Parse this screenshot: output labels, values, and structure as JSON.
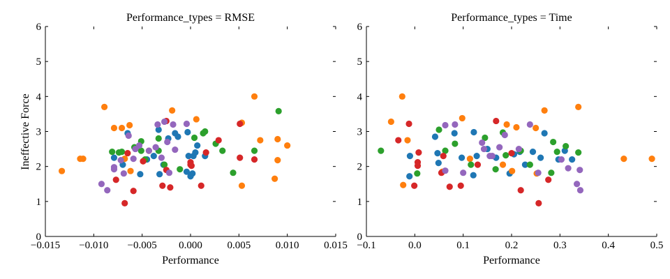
{
  "figure": {
    "ylabel": "Ineffective Force"
  },
  "colors": {
    "blue": "#1f77b4",
    "orange": "#ff7f0e",
    "green": "#2ca02c",
    "red": "#d62728",
    "purple": "#9467bd"
  },
  "chart_data": [
    {
      "type": "scatter",
      "title": "Performance_types = RMSE",
      "xlabel": "Performance",
      "ylabel": "Ineffective Force",
      "xlim": [
        -0.015,
        0.015
      ],
      "ylim": [
        0,
        6
      ],
      "xticks": [
        "−0.015",
        "−0.010",
        "−0.005",
        "0.000",
        "0.005",
        "0.010",
        "0.015"
      ],
      "xtick_values": [
        -0.015,
        -0.01,
        -0.005,
        0,
        0.005,
        0.01,
        0.015
      ],
      "yticks": [
        "0",
        "1",
        "2",
        "3",
        "4",
        "5",
        "6"
      ],
      "ytick_values": [
        0,
        1,
        2,
        3,
        4,
        5,
        6
      ],
      "grid": false,
      "series": [
        {
          "color": "blue",
          "points": [
            [
              -0.0079,
              2.25
            ],
            [
              -0.007,
              2.05
            ],
            [
              -0.0065,
              2.95
            ],
            [
              -0.0052,
              1.78
            ],
            [
              -0.0045,
              2.2
            ],
            [
              -0.0038,
              2.3
            ],
            [
              -0.0033,
              3.05
            ],
            [
              -0.0032,
              1.78
            ],
            [
              -0.0028,
              2.05
            ],
            [
              -0.0023,
              2.8
            ],
            [
              -0.0016,
              2.95
            ],
            [
              -0.0013,
              2.85
            ],
            [
              -0.0004,
              1.85
            ],
            [
              -0.0003,
              2.98
            ],
            [
              -0.0002,
              2.3
            ],
            [
              0.0,
              1.72
            ],
            [
              0.0002,
              1.8
            ],
            [
              0.0003,
              2.3
            ],
            [
              0.0005,
              2.4
            ],
            [
              0.0007,
              2.6
            ],
            [
              0.0015,
              2.3
            ]
          ]
        },
        {
          "color": "orange",
          "points": [
            [
              -0.0133,
              1.87
            ],
            [
              -0.0114,
              2.22
            ],
            [
              -0.0111,
              2.22
            ],
            [
              -0.0089,
              3.7
            ],
            [
              -0.0079,
              3.1
            ],
            [
              -0.0071,
              3.1
            ],
            [
              -0.0068,
              2.22
            ],
            [
              -0.0063,
              3.18
            ],
            [
              -0.0062,
              1.87
            ],
            [
              -0.0049,
              2.15
            ],
            [
              -0.0043,
              2.45
            ],
            [
              -0.0019,
              3.6
            ],
            [
              0.0006,
              3.35
            ],
            [
              0.0053,
              3.25
            ],
            [
              0.0053,
              1.45
            ],
            [
              0.0066,
              4.0
            ],
            [
              0.0072,
              2.75
            ],
            [
              0.0087,
              1.65
            ],
            [
              0.009,
              2.78
            ],
            [
              0.009,
              2.18
            ],
            [
              0.01,
              2.6
            ]
          ]
        },
        {
          "color": "green",
          "points": [
            [
              -0.0081,
              2.42
            ],
            [
              -0.0074,
              2.4
            ],
            [
              -0.0071,
              2.42
            ],
            [
              -0.0058,
              2.55
            ],
            [
              -0.0051,
              2.72
            ],
            [
              -0.0051,
              2.45
            ],
            [
              -0.0047,
              2.2
            ],
            [
              -0.0033,
              2.45
            ],
            [
              -0.0033,
              2.8
            ],
            [
              -0.0027,
              2.05
            ],
            [
              -0.0011,
              1.92
            ],
            [
              0.0004,
              2.82
            ],
            [
              0.0013,
              2.95
            ],
            [
              0.0015,
              3.0
            ],
            [
              0.0026,
              2.65
            ],
            [
              0.0033,
              2.45
            ],
            [
              0.0044,
              1.82
            ],
            [
              0.0066,
              2.45
            ],
            [
              0.0091,
              3.58
            ]
          ]
        },
        {
          "color": "red",
          "points": [
            [
              -0.0077,
              1.62
            ],
            [
              -0.0068,
              0.95
            ],
            [
              -0.0065,
              2.38
            ],
            [
              -0.0059,
              1.3
            ],
            [
              -0.0049,
              2.15
            ],
            [
              -0.0029,
              1.45
            ],
            [
              -0.0025,
              1.9
            ],
            [
              -0.0025,
              3.3
            ],
            [
              -0.0021,
              1.4
            ],
            [
              0.0,
              2.05
            ],
            [
              0.0,
              2.12
            ],
            [
              0.0001,
              2.02
            ],
            [
              0.0011,
              1.45
            ],
            [
              0.0016,
              2.4
            ],
            [
              0.0029,
              2.75
            ],
            [
              0.0051,
              2.25
            ],
            [
              0.0051,
              3.22
            ],
            [
              0.0066,
              2.2
            ]
          ]
        },
        {
          "color": "purple",
          "points": [
            [
              -0.0092,
              1.5
            ],
            [
              -0.0086,
              1.32
            ],
            [
              -0.0079,
              1.92
            ],
            [
              -0.0079,
              1.98
            ],
            [
              -0.0072,
              2.18
            ],
            [
              -0.0069,
              1.8
            ],
            [
              -0.0064,
              2.88
            ],
            [
              -0.0059,
              2.22
            ],
            [
              -0.0057,
              2.5
            ],
            [
              -0.0053,
              2.6
            ],
            [
              -0.0043,
              2.45
            ],
            [
              -0.0034,
              3.2
            ],
            [
              -0.0036,
              2.55
            ],
            [
              -0.003,
              2.25
            ],
            [
              -0.0027,
              3.28
            ],
            [
              -0.0024,
              2.7
            ],
            [
              -0.0022,
              1.82
            ],
            [
              -0.0018,
              3.2
            ],
            [
              -0.0016,
              2.48
            ],
            [
              -0.0004,
              3.22
            ]
          ]
        }
      ]
    },
    {
      "type": "scatter",
      "title": "Performance_types = Time",
      "xlabel": "Performance",
      "ylabel": "",
      "xlim": [
        -0.1,
        0.5
      ],
      "ylim": [
        0,
        6
      ],
      "xticks": [
        "−0.1",
        "0.0",
        "0.1",
        "0.2",
        "0.3",
        "0.4",
        "0.5"
      ],
      "xtick_values": [
        -0.1,
        0,
        0.1,
        0.2,
        0.3,
        0.4,
        0.5
      ],
      "yticks": [
        "0",
        "1",
        "2",
        "3",
        "4",
        "5",
        "6"
      ],
      "ytick_values": [
        0,
        1,
        2,
        3,
        4,
        5,
        6
      ],
      "grid": false,
      "series": [
        {
          "color": "blue",
          "points": [
            [
              -0.01,
              2.3
            ],
            [
              -0.011,
              1.72
            ],
            [
              0.042,
              2.85
            ],
            [
              0.047,
              2.38
            ],
            [
              0.049,
              2.1
            ],
            [
              0.082,
              2.95
            ],
            [
              0.097,
              2.25
            ],
            [
              0.122,
              2.98
            ],
            [
              0.121,
              1.75
            ],
            [
              0.128,
              2.3
            ],
            [
              0.15,
              2.5
            ],
            [
              0.168,
              2.25
            ],
            [
              0.196,
              1.8
            ],
            [
              0.205,
              2.35
            ],
            [
              0.217,
              2.42
            ],
            [
              0.228,
              2.05
            ],
            [
              0.244,
              2.42
            ],
            [
              0.26,
              2.25
            ],
            [
              0.268,
              2.95
            ],
            [
              0.297,
              2.2
            ],
            [
              0.31,
              2.45
            ],
            [
              0.325,
              2.2
            ]
          ]
        },
        {
          "color": "orange",
          "points": [
            [
              -0.049,
              3.28
            ],
            [
              -0.026,
              4.0
            ],
            [
              -0.024,
              1.47
            ],
            [
              -0.015,
              2.75
            ],
            [
              0.057,
              1.85
            ],
            [
              0.098,
              3.38
            ],
            [
              0.114,
              2.22
            ],
            [
              0.182,
              2.05
            ],
            [
              0.19,
              3.2
            ],
            [
              0.201,
              1.87
            ],
            [
              0.21,
              3.12
            ],
            [
              0.25,
              3.1
            ],
            [
              0.252,
              1.8
            ],
            [
              0.268,
              3.6
            ],
            [
              0.338,
              3.7
            ],
            [
              0.432,
              2.22
            ],
            [
              0.49,
              2.22
            ]
          ]
        },
        {
          "color": "green",
          "points": [
            [
              -0.07,
              2.45
            ],
            [
              0.005,
              1.8
            ],
            [
              0.05,
              3.05
            ],
            [
              0.063,
              2.45
            ],
            [
              0.083,
              2.65
            ],
            [
              0.116,
              2.05
            ],
            [
              0.145,
              2.82
            ],
            [
              0.167,
              1.92
            ],
            [
              0.182,
              2.97
            ],
            [
              0.188,
              2.32
            ],
            [
              0.219,
              2.45
            ],
            [
              0.238,
              2.05
            ],
            [
              0.286,
              2.7
            ],
            [
              0.294,
              2.42
            ],
            [
              0.312,
              2.58
            ],
            [
              0.338,
              2.4
            ],
            [
              0.282,
              1.82
            ]
          ]
        },
        {
          "color": "red",
          "points": [
            [
              -0.034,
              2.75
            ],
            [
              -0.012,
              3.22
            ],
            [
              -0.001,
              1.45
            ],
            [
              0.006,
              2.12
            ],
            [
              0.008,
              2.4
            ],
            [
              0.006,
              2.02
            ],
            [
              0.055,
              1.82
            ],
            [
              0.059,
              2.3
            ],
            [
              0.072,
              1.42
            ],
            [
              0.095,
              1.45
            ],
            [
              0.13,
              2.05
            ],
            [
              0.168,
              3.3
            ],
            [
              0.2,
              2.38
            ],
            [
              0.219,
              1.32
            ],
            [
              0.256,
              0.95
            ],
            [
              0.276,
              1.62
            ]
          ]
        },
        {
          "color": "purple",
          "points": [
            [
              0.063,
              3.18
            ],
            [
              0.063,
              1.88
            ],
            [
              0.083,
              3.2
            ],
            [
              0.1,
              1.82
            ],
            [
              0.139,
              2.68
            ],
            [
              0.143,
              2.5
            ],
            [
              0.155,
              2.3
            ],
            [
              0.16,
              2.3
            ],
            [
              0.175,
              2.55
            ],
            [
              0.186,
              2.9
            ],
            [
              0.215,
              2.5
            ],
            [
              0.238,
              3.2
            ],
            [
              0.255,
              1.82
            ],
            [
              0.317,
              1.95
            ],
            [
              0.335,
              1.5
            ],
            [
              0.342,
              1.32
            ],
            [
              0.341,
              1.9
            ],
            [
              0.303,
              2.2
            ]
          ]
        }
      ]
    }
  ]
}
